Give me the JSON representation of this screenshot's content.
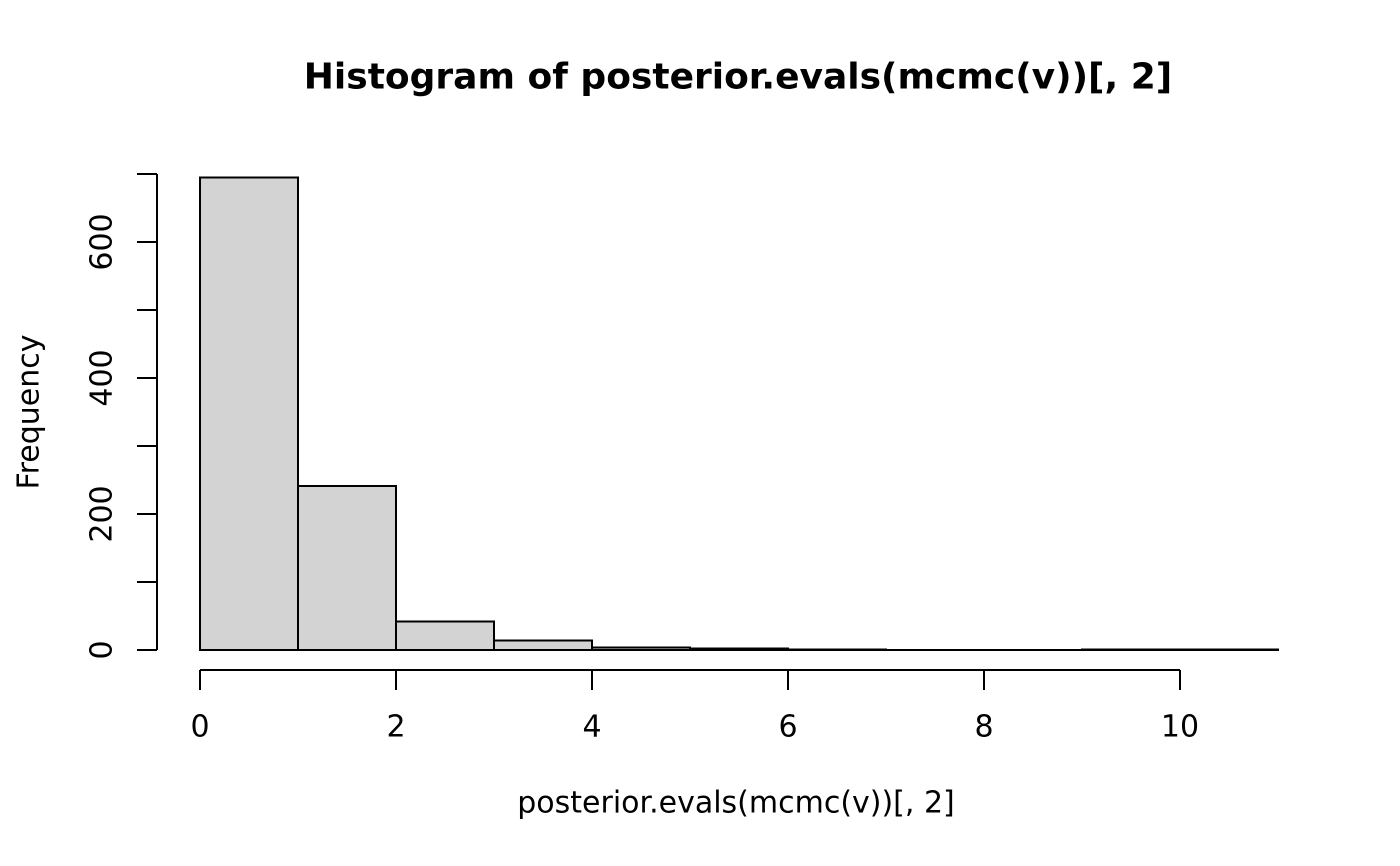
{
  "chart_data": {
    "type": "bar",
    "subtype": "histogram",
    "title": "Histogram of posterior.evals(mcmc(v))[, 2]",
    "xlabel": "posterior.evals(mcmc(v))[, 2]",
    "ylabel": "Frequency",
    "bin_edges": [
      0,
      1,
      2,
      3,
      4,
      5,
      6,
      7,
      8,
      9,
      10,
      11
    ],
    "frequencies": [
      695,
      241,
      42,
      14,
      4,
      2,
      1,
      0,
      0,
      1,
      1
    ],
    "x_tick_values": [
      0,
      2,
      4,
      6,
      8,
      10
    ],
    "x_tick_labels": [
      "0",
      "2",
      "4",
      "6",
      "8",
      "10"
    ],
    "y_tick_values": [
      0,
      100,
      200,
      300,
      400,
      500,
      600,
      700
    ],
    "y_labeled_ticks": [
      {
        "value": 0,
        "label": "0"
      },
      {
        "value": 200,
        "label": "200"
      },
      {
        "value": 400,
        "label": "400"
      },
      {
        "value": 600,
        "label": "600"
      }
    ],
    "xlim": [
      0,
      11
    ],
    "ylim": [
      0,
      700
    ],
    "grid": false,
    "legend": null,
    "colors": {
      "bar_fill": "#d3d3d3",
      "bar_border": "#000000",
      "axis": "#000000",
      "text": "#000000",
      "background": "#ffffff"
    }
  }
}
